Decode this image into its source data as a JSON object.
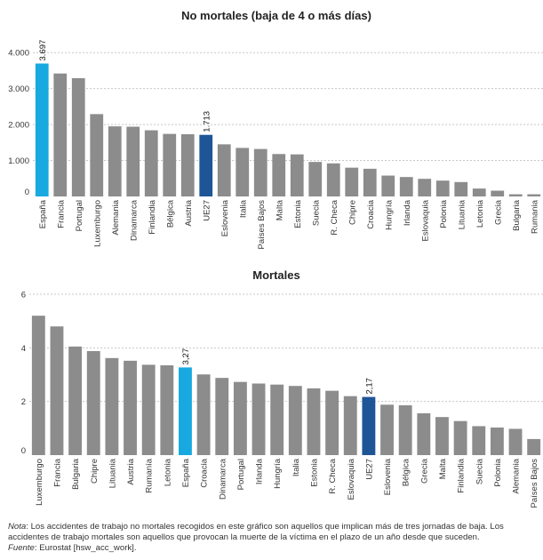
{
  "chart_data": [
    {
      "type": "bar",
      "title": "No mortales (baja de 4 o más días)",
      "xlabel": "",
      "ylabel": "",
      "ylim": [
        0,
        4500
      ],
      "yticks": [
        0,
        1000,
        2000,
        3000,
        4000
      ],
      "ytick_labels": [
        "0",
        "1.000",
        "2.000",
        "3.000",
        "4.000"
      ],
      "grid": true,
      "categories": [
        "España",
        "Francia",
        "Portugal",
        "Luxemburgo",
        "Alemania",
        "Dinamarca",
        "Finlandia",
        "Bélgica",
        "Austria",
        "UE27",
        "Eslovenia",
        "Italia",
        "Países Bajos",
        "Malta",
        "Estonia",
        "Suecia",
        "R. Checa",
        "Chipre",
        "Croacia",
        "Hungría",
        "Irlanda",
        "Eslovaquia",
        "Polonia",
        "Lituania",
        "Letonia",
        "Grecia",
        "Bulgaria",
        "Rumania"
      ],
      "values": [
        3697,
        3420,
        3290,
        2290,
        1950,
        1940,
        1840,
        1740,
        1730,
        1713,
        1450,
        1350,
        1320,
        1180,
        1170,
        960,
        920,
        800,
        770,
        580,
        540,
        490,
        440,
        400,
        220,
        160,
        60,
        60
      ],
      "highlights": {
        "España": "#18a9e0",
        "UE27": "#1e5596"
      },
      "default_color": "#8c8c8c",
      "data_labels": [
        {
          "category": "España",
          "text": "3.697"
        },
        {
          "category": "UE27",
          "text": "1.713"
        }
      ]
    },
    {
      "type": "bar",
      "title": "Mortales",
      "xlabel": "",
      "ylabel": "",
      "ylim": [
        0,
        6.3
      ],
      "yticks": [
        0,
        2,
        4,
        6
      ],
      "ytick_labels": [
        "0",
        "2",
        "4",
        "6"
      ],
      "grid": true,
      "categories": [
        "Luxemburgo",
        "Francia",
        "Bulgaria",
        "Chipre",
        "Lituania",
        "Austria",
        "Rumanía",
        "Letonia",
        "España",
        "Croacia",
        "Dinamarca",
        "Portugal",
        "Irlanda",
        "Hungría",
        "Italia",
        "Estonia",
        "R. Checa",
        "Eslovaquia",
        "UE27",
        "Eslovenia",
        "Bélgica",
        "Grecia",
        "Malta",
        "Finlandia",
        "Suecia",
        "Polonia",
        "Alemania",
        "Países Bajos"
      ],
      "values": [
        5.2,
        4.8,
        4.05,
        3.88,
        3.62,
        3.52,
        3.37,
        3.35,
        3.27,
        3.01,
        2.88,
        2.73,
        2.67,
        2.63,
        2.58,
        2.49,
        2.4,
        2.2,
        2.17,
        1.88,
        1.86,
        1.56,
        1.42,
        1.27,
        1.08,
        1.03,
        0.98,
        0.6
      ],
      "highlights": {
        "España": "#18a9e0",
        "UE27": "#1e5596"
      },
      "default_color": "#8c8c8c",
      "data_labels": [
        {
          "category": "España",
          "text": "3,27"
        },
        {
          "category": "UE27",
          "text": "2,17"
        }
      ]
    }
  ],
  "footnote": {
    "note_label": "Nota",
    "note_text": ": Los accidentes de trabajo no mortales recogidos en este gráfico son aquellos que implican más de tres jornadas de baja. Los accidentes de trabajo mortales son aquellos que provocan la muerte de la víctima en el plazo de un año desde que suceden.",
    "source_label": "Fuente",
    "source_text": ": Eurostat [hsw_acc_work]."
  }
}
